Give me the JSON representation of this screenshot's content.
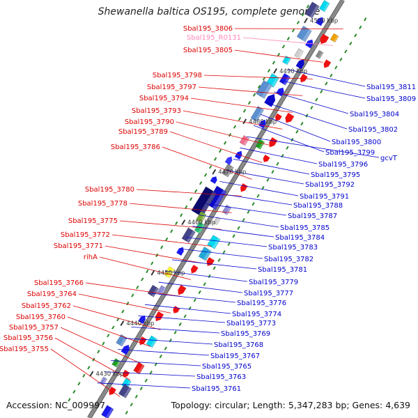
{
  "title": "Shewanella baltica OS195, complete genome",
  "footer": {
    "accession": "Accession: NC_009997",
    "summary": "Topology: circular; Length: 5,347,283 bp; Genes: 4,639"
  },
  "colors": {
    "backbone": "#8a8a8a",
    "left_label": "#dd0000",
    "right_label": "#0000cc",
    "rna_label": "#ff88bb",
    "gene_red": "#ee1111",
    "gene_blue": "#1a1aee",
    "tick_green": "#2a8a2a"
  },
  "scale_ticks": [
    "4430 kbp",
    "4440 kbp",
    "4450 kbp",
    "4460 kbp",
    "4470 kbp",
    "4480 kbp",
    "4490 kbp",
    "4500 kbp"
  ],
  "left_labels": [
    {
      "text": "Sbal195_3806",
      "kind": "gene"
    },
    {
      "text": "Sbal195_R0131",
      "kind": "rna"
    },
    {
      "text": "Sbal195_3805",
      "kind": "gene"
    },
    {
      "text": "Sbal195_3798",
      "kind": "gene"
    },
    {
      "text": "Sbal195_3797",
      "kind": "gene"
    },
    {
      "text": "Sbal195_3794",
      "kind": "gene"
    },
    {
      "text": "Sbal195_3793",
      "kind": "gene"
    },
    {
      "text": "Sbal195_3790",
      "kind": "gene"
    },
    {
      "text": "Sbal195_3789",
      "kind": "gene"
    },
    {
      "text": "Sbal195_3786",
      "kind": "gene"
    },
    {
      "text": "Sbal195_3780",
      "kind": "gene"
    },
    {
      "text": "Sbal195_3778",
      "kind": "gene"
    },
    {
      "text": "Sbal195_3775",
      "kind": "gene"
    },
    {
      "text": "Sbal195_3772",
      "kind": "gene"
    },
    {
      "text": "Sbal195_3771",
      "kind": "gene"
    },
    {
      "text": "rihA",
      "kind": "gene"
    },
    {
      "text": "Sbal195_3766",
      "kind": "gene"
    },
    {
      "text": "Sbal195_3764",
      "kind": "gene"
    },
    {
      "text": "Sbal195_3762",
      "kind": "gene"
    },
    {
      "text": "Sbal195_3760",
      "kind": "gene"
    },
    {
      "text": "Sbal195_3757",
      "kind": "gene"
    },
    {
      "text": "Sbal195_3756",
      "kind": "gene"
    },
    {
      "text": "Sbal195_3755",
      "kind": "gene"
    }
  ],
  "right_labels": [
    "Sbal195_3811",
    "Sbal195_3809",
    "Sbal195_3804",
    "Sbal195_3802",
    "Sbal195_3800",
    "Sbal195_3799",
    "gcvT",
    "Sbal195_3796",
    "Sbal195_3795",
    "Sbal195_3792",
    "Sbal195_3791",
    "Sbal195_3788",
    "Sbal195_3787",
    "Sbal195_3785",
    "Sbal195_3784",
    "Sbal195_3783",
    "Sbal195_3782",
    "Sbal195_3781",
    "Sbal195_3779",
    "Sbal195_3777",
    "Sbal195_3776",
    "Sbal195_3774",
    "Sbal195_3773",
    "Sbal195_3769",
    "Sbal195_3768",
    "Sbal195_3767",
    "Sbal195_3765",
    "Sbal195_3763",
    "Sbal195_3761"
  ]
}
